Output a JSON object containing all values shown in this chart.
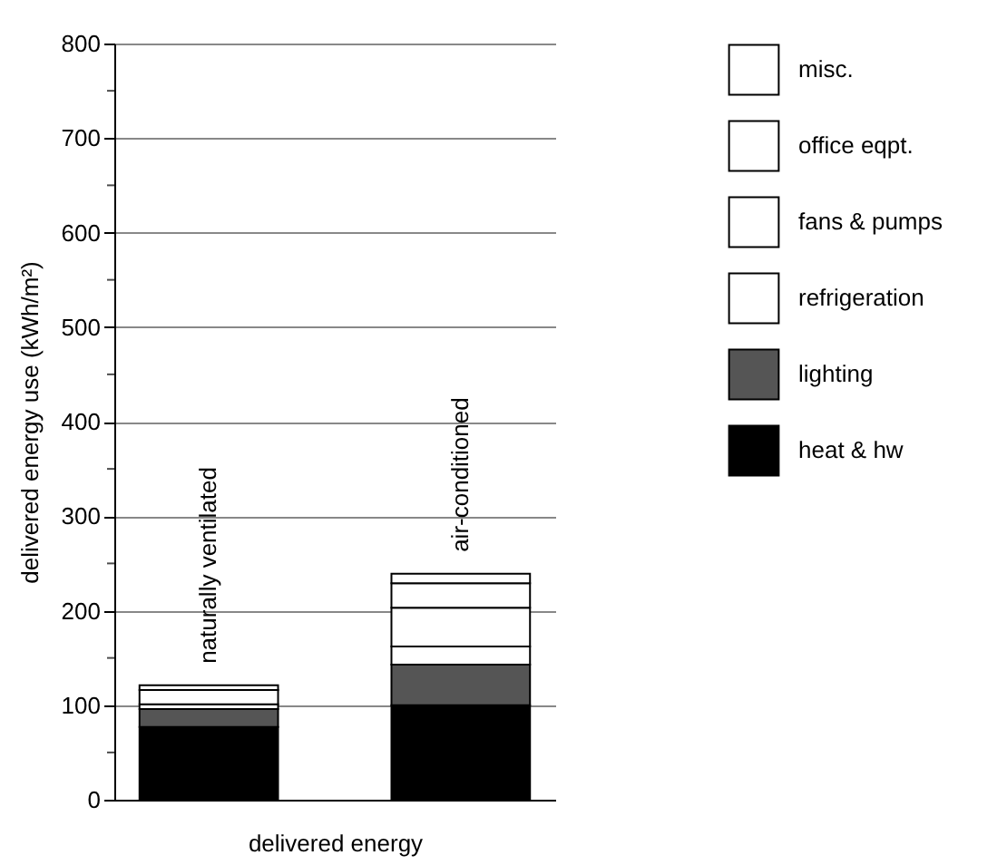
{
  "chart_data": {
    "type": "bar",
    "stacked": true,
    "categories": [
      "naturally ventilated",
      "air-conditioned"
    ],
    "xlabel": "delivered energy",
    "ylabel": "delivered energy use (kWh/m²)",
    "ylim": [
      0,
      800
    ],
    "yticks": [
      0,
      {
        "value": 50,
        "label": null
      },
      100,
      {
        "value": 150,
        "label": null
      },
      200,
      {
        "value": 250,
        "label": null
      },
      300,
      {
        "value": 350,
        "label": null
      },
      400,
      {
        "value": 450,
        "label": null
      },
      500,
      {
        "value": 550,
        "label": null
      },
      600,
      {
        "value": 650,
        "label": null
      },
      700,
      {
        "value": 750,
        "label": null
      },
      800
    ],
    "grid": "y",
    "legend": "right",
    "series": [
      {
        "name": "heat & hw",
        "color": "#000000",
        "values": [
          77,
          100
        ]
      },
      {
        "name": "lighting",
        "color": "#555555",
        "values": [
          19,
          43
        ]
      },
      {
        "name": "refrigeration",
        "color": "#ffffff",
        "values": [
          0,
          19
        ]
      },
      {
        "name": "fans & pumps",
        "color": "#ffffff",
        "values": [
          5,
          41
        ]
      },
      {
        "name": "office eqpt.",
        "color": "#ffffff",
        "values": [
          15,
          26
        ]
      },
      {
        "name": "misc.",
        "color": "#ffffff",
        "values": [
          5,
          10
        ]
      }
    ]
  }
}
